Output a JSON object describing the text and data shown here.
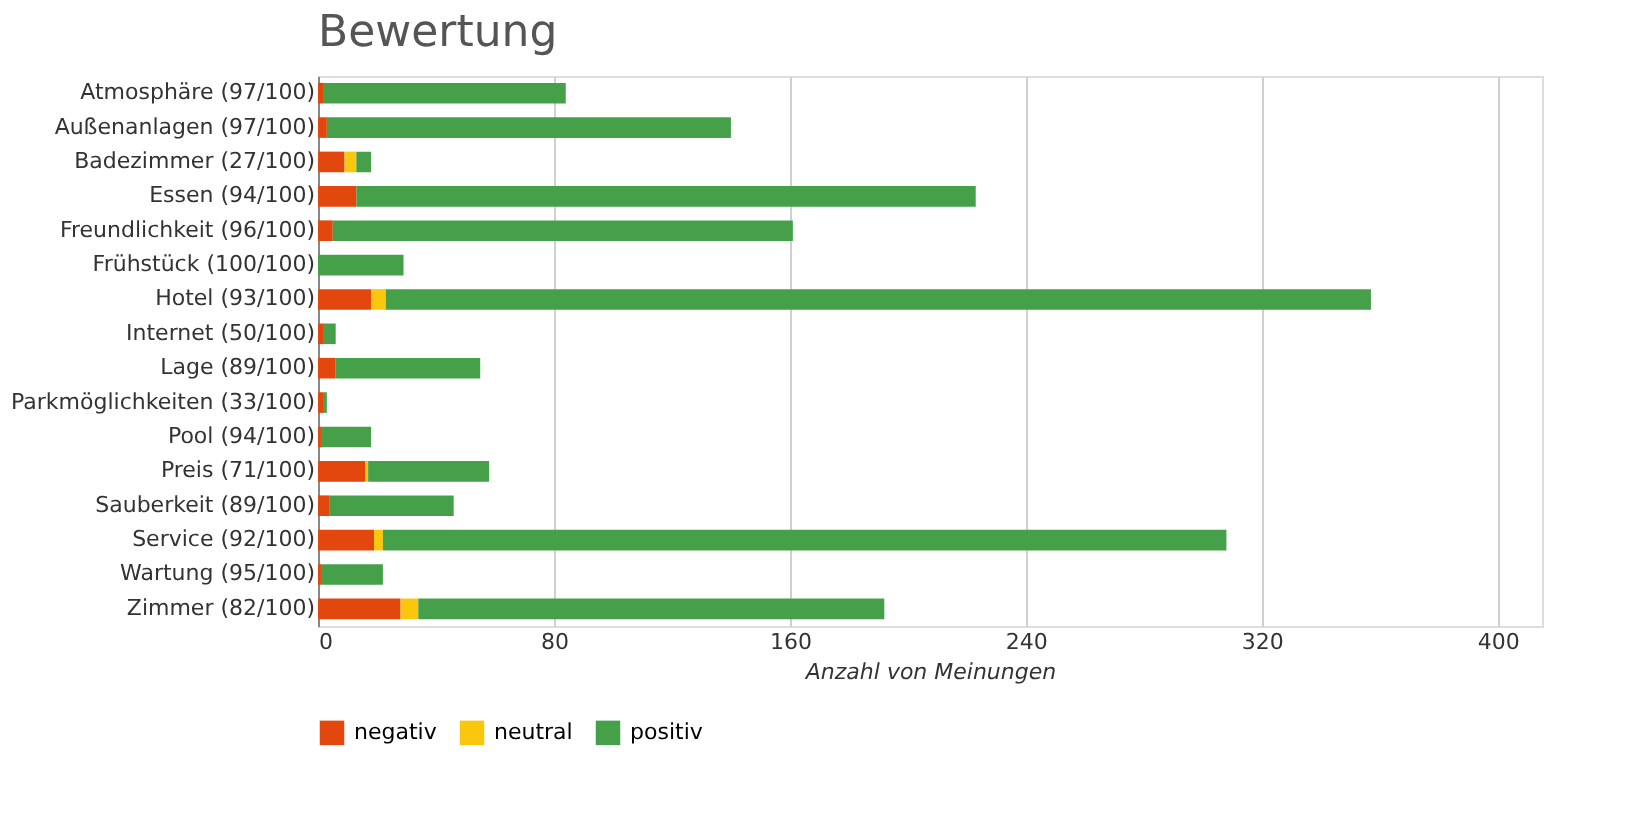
{
  "chart_data": {
    "type": "bar",
    "title": "Bewertung",
    "xlabel": "Anzahl von Meinungen",
    "orientation": "horizontal",
    "stacked": true,
    "categories": [
      "Atmosphäre (97/100)",
      "Außenanlagen (97/100)",
      "Badezimmer (27/100)",
      "Essen (94/100)",
      "Freundlichkeit (96/100)",
      "Frühstück (100/100)",
      "Hotel (93/100)",
      "Internet (50/100)",
      "Lage (89/100)",
      "Parkmöglichkeiten (33/100)",
      "Pool (94/100)",
      "Preis (71/100)",
      "Sauberkeit (89/100)",
      "Service (92/100)",
      "Wartung (95/100)",
      "Zimmer (82/100)"
    ],
    "series": [
      {
        "name": "negativ",
        "color": "#e2470e",
        "values": [
          2,
          3,
          9,
          13,
          5,
          0,
          18,
          2,
          6,
          2,
          1,
          16,
          4,
          19,
          1,
          28
        ]
      },
      {
        "name": "neutral",
        "color": "#f9c80e",
        "values": [
          0,
          0,
          4,
          0,
          0,
          0,
          5,
          0,
          0,
          0,
          0,
          1,
          0,
          3,
          0,
          6
        ]
      },
      {
        "name": "positiv",
        "color": "#46a04a",
        "values": [
          82,
          137,
          5,
          210,
          156,
          29,
          334,
          4,
          49,
          1,
          17,
          41,
          42,
          286,
          21,
          158
        ]
      }
    ],
    "xlim": [
      0,
      415
    ],
    "xticks": [
      0,
      80,
      160,
      240,
      320,
      400
    ],
    "grid": "x",
    "legend": "bottom"
  }
}
